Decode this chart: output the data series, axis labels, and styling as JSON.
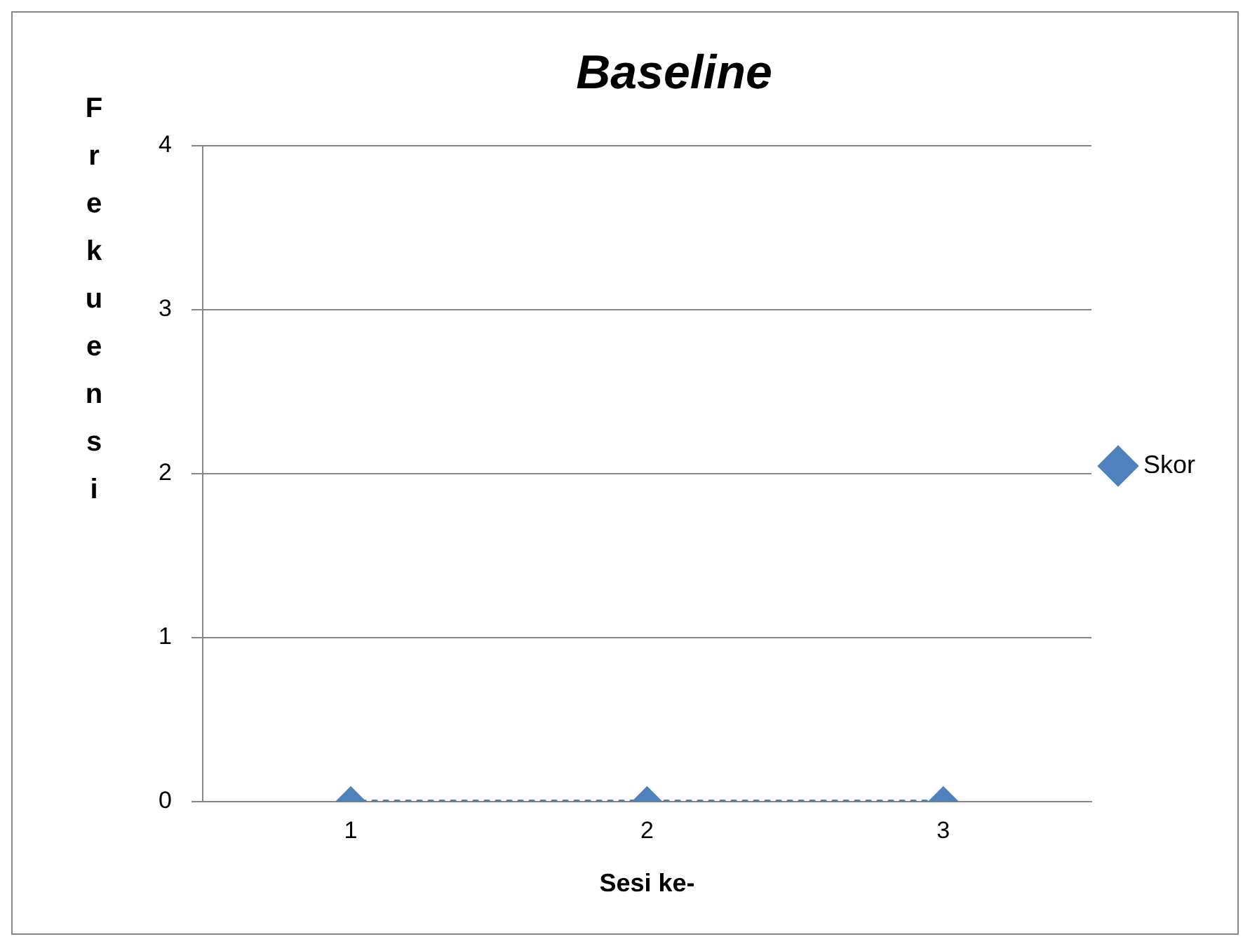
{
  "chart_data": {
    "type": "line",
    "title": "Baseline",
    "xlabel": "Sesi ke-",
    "ylabel": "Frekuensi",
    "categories": [
      "1",
      "2",
      "3"
    ],
    "series": [
      {
        "name": "Skor",
        "color": "#4f81bd",
        "values": [
          0,
          0,
          0
        ]
      }
    ],
    "ylim": [
      0,
      4
    ],
    "yticks": [
      0,
      1,
      2,
      3,
      4
    ],
    "grid": "y",
    "legend": "right",
    "marker": "diamond",
    "line_style": "dotted"
  }
}
